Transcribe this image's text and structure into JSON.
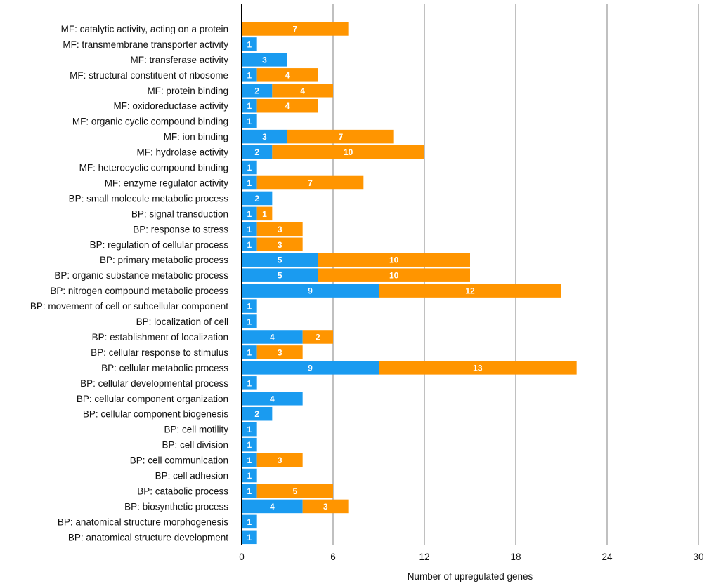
{
  "chart_data": {
    "type": "bar",
    "orientation": "horizontal",
    "stacked": true,
    "title": "",
    "xlabel": "Number of upregulated genes",
    "ylabel": "",
    "xlim": [
      0,
      30
    ],
    "xticks": [
      0,
      6,
      12,
      18,
      24,
      30
    ],
    "grid": true,
    "legend": "none",
    "categories": [
      "MF: catalytic activity, acting on a protein",
      "MF: transmembrane transporter activity",
      "MF: transferase activity",
      "MF: structural constituent of ribosome",
      "MF: protein binding",
      "MF: oxidoreductase activity",
      "MF: organic cyclic compound binding",
      "MF: ion binding",
      "MF: hydrolase activity",
      "MF: heterocyclic compound binding",
      "MF: enzyme regulator activity",
      "BP: small molecule metabolic process",
      "BP: signal transduction",
      "BP: response to stress",
      "BP: regulation of cellular process",
      "BP: primary metabolic process",
      "BP: organic substance metabolic process",
      "BP: nitrogen compound metabolic process",
      "BP: movement of cell or subcellular component",
      "BP: localization of cell",
      "BP: establishment of localization",
      "BP: cellular response to stimulus",
      "BP: cellular metabolic process",
      "BP: cellular developmental process",
      "BP: cellular component organization",
      "BP: cellular component biogenesis",
      "BP: cell motility",
      "BP: cell division",
      "BP: cell communication",
      "BP: cell adhesion",
      "BP: catabolic process",
      "BP: biosynthetic process",
      "BP: anatomical structure morphogenesis",
      "BP: anatomical structure development"
    ],
    "series": [
      {
        "name": "blue",
        "color": "#1a9bf0",
        "values": [
          0,
          1,
          3,
          1,
          2,
          1,
          1,
          3,
          2,
          1,
          1,
          2,
          1,
          1,
          1,
          5,
          5,
          9,
          1,
          1,
          4,
          1,
          9,
          1,
          4,
          2,
          1,
          1,
          1,
          1,
          1,
          4,
          1,
          1
        ]
      },
      {
        "name": "orange",
        "color": "#ff9500",
        "values": [
          7,
          0,
          0,
          4,
          4,
          4,
          0,
          7,
          10,
          0,
          7,
          0,
          1,
          3,
          3,
          10,
          10,
          12,
          0,
          0,
          2,
          3,
          13,
          0,
          0,
          0,
          0,
          0,
          3,
          0,
          5,
          3,
          0,
          0
        ]
      }
    ]
  }
}
